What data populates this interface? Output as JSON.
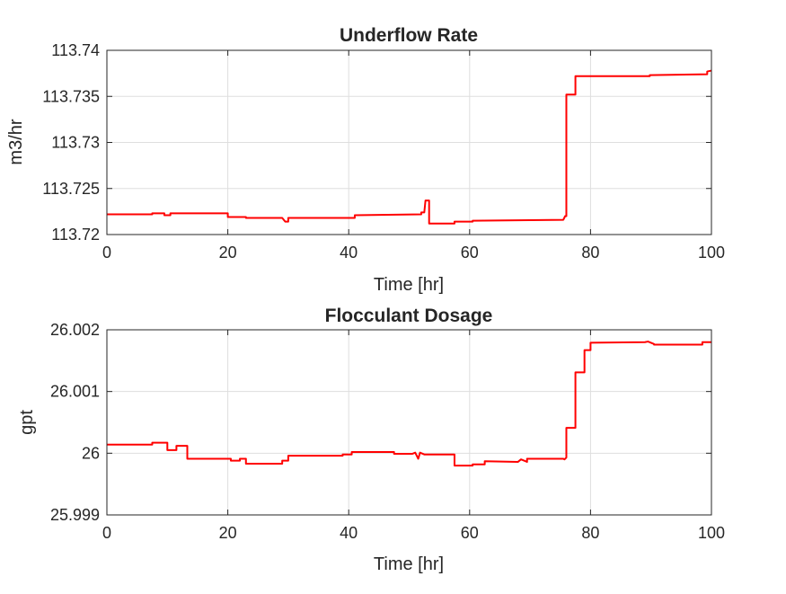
{
  "chart_data": [
    {
      "type": "line",
      "title": "Underflow Rate",
      "xlabel": "Time [hr]",
      "ylabel": "m3/hr",
      "xlim": [
        0,
        100
      ],
      "ylim": [
        113.72,
        113.74
      ],
      "xticks": [
        0,
        20,
        40,
        60,
        80,
        100
      ],
      "xtick_labels": [
        "0",
        "20",
        "40",
        "60",
        "80",
        "100"
      ],
      "yticks": [
        113.72,
        113.725,
        113.73,
        113.735,
        113.74
      ],
      "ytick_labels": [
        "113.72",
        "113.725",
        "113.73",
        "113.735",
        "113.74"
      ],
      "grid": true,
      "color": "#ff0000",
      "series": [
        {
          "x": [
            0,
            7.5,
            7.5,
            9.5,
            9.5,
            10.5,
            10.5,
            20,
            20,
            23,
            23,
            29,
            29.5,
            30,
            30,
            41,
            41,
            52,
            52,
            52.5,
            52.7,
            53.3,
            53.3,
            57.5,
            57.5,
            60.5,
            60.5,
            75.5,
            75.8,
            76,
            76,
            77.5,
            77.5,
            89.8,
            89.8,
            99.3,
            99.3,
            100
          ],
          "y": [
            113.7222,
            113.7222,
            113.7223,
            113.7223,
            113.7221,
            113.7221,
            113.7223,
            113.7223,
            113.7219,
            113.7219,
            113.7218,
            113.7218,
            113.7214,
            113.7214,
            113.7218,
            113.7218,
            113.7221,
            113.7222,
            113.7224,
            113.7224,
            113.7237,
            113.7237,
            113.7212,
            113.7212,
            113.7214,
            113.7214,
            113.7215,
            113.7216,
            113.722,
            113.722,
            113.7352,
            113.7352,
            113.7372,
            113.7372,
            113.7373,
            113.7374,
            113.7377,
            113.7378
          ]
        }
      ]
    },
    {
      "type": "line",
      "title": "Flocculant Dosage",
      "xlabel": "Time [hr]",
      "ylabel": "gpt",
      "xlim": [
        0,
        100
      ],
      "ylim": [
        25.999,
        26.002
      ],
      "xticks": [
        0,
        20,
        40,
        60,
        80,
        100
      ],
      "xtick_labels": [
        "0",
        "20",
        "40",
        "60",
        "80",
        "100"
      ],
      "yticks": [
        25.999,
        26,
        26.001,
        26.002
      ],
      "ytick_labels": [
        "25.999",
        "26",
        "26.001",
        "26.002"
      ],
      "grid": true,
      "color": "#ff0000",
      "series": [
        {
          "x": [
            0,
            7.5,
            7.5,
            10,
            10,
            11.5,
            11.5,
            13.3,
            13.3,
            20.5,
            20.5,
            22,
            22,
            23,
            23,
            29,
            29,
            30,
            30,
            39,
            39,
            40.5,
            40.5,
            47.5,
            47.5,
            50.5,
            51,
            51.5,
            51.8,
            52.5,
            52.5,
            57.5,
            57.5,
            60.5,
            60.5,
            62.5,
            62.5,
            68,
            68.5,
            69.5,
            69.5,
            75.5,
            75.7,
            76,
            76,
            77.5,
            77.5,
            79,
            79,
            80,
            80,
            89,
            89.5,
            90.5,
            90.5,
            98.5,
            98.5,
            100
          ],
          "y": [
            26.00014,
            26.00014,
            26.00017,
            26.00017,
            26.00005,
            26.00005,
            26.00012,
            26.00012,
            25.99991,
            25.99991,
            25.99988,
            25.99988,
            25.99991,
            25.99991,
            25.99983,
            25.99983,
            25.99988,
            25.99988,
            25.99996,
            25.99996,
            25.99998,
            25.99998,
            26.00002,
            26.00002,
            25.99999,
            25.99999,
            26.00001,
            25.99991,
            26.00001,
            25.99998,
            25.99998,
            25.99998,
            25.9998,
            25.9998,
            25.99982,
            25.99982,
            25.99987,
            25.99986,
            25.9999,
            25.99986,
            25.99991,
            25.99991,
            25.9999,
            25.99993,
            26.00041,
            26.00041,
            26.00131,
            26.00131,
            26.00167,
            26.00167,
            26.00179,
            26.0018,
            26.00181,
            26.00177,
            26.00176,
            26.00176,
            26.0018,
            26.0018
          ]
        }
      ]
    }
  ]
}
